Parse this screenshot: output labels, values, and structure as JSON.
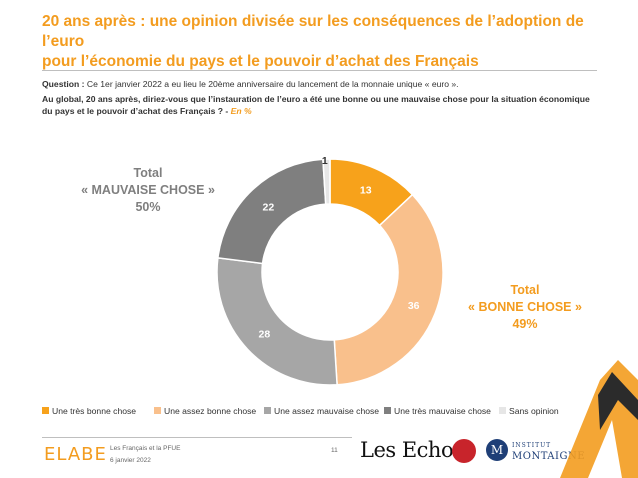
{
  "title": {
    "line1": "20 ans après : une opinion divisée sur les conséquences de l’adoption de l’euro",
    "line2": "pour l’économie du pays et le pouvoir d’achat des Français"
  },
  "question": {
    "label": "Question :",
    "text": " Ce 1er janvier 2022 a eu lieu le 20ème anniversaire du lancement de la monnaie unique « euro ».",
    "text2": "Au global, 20 ans après, diriez-vous que l’instauration de l’euro a été une bonne ou une mauvaise chose pour la situation économique du pays et le pouvoir d’achat des Français ? - ",
    "unit": "En %"
  },
  "totals": {
    "bad_line1": "Total",
    "bad_line2": "« MAUVAISE CHOSE »",
    "bad_value": "50%",
    "good_line1": "Total",
    "good_line2": "« BONNE CHOSE »",
    "good_value": "49%"
  },
  "chart_data": {
    "type": "pie",
    "donut": true,
    "unit": "%",
    "categories": [
      "Une très bonne chose",
      "Une assez bonne chose",
      "Une assez mauvaise chose",
      "Une très mauvaise chose",
      "Sans opinion"
    ],
    "values": [
      13,
      36,
      28,
      22,
      1
    ],
    "colors": [
      "#f7a21b",
      "#f9c08c",
      "#a6a6a6",
      "#7f7f7f",
      "#e6e6e6"
    ],
    "label_colors": [
      "#ffffff",
      "#ffffff",
      "#ffffff",
      "#ffffff",
      "#333333"
    ],
    "legend_position": "bottom"
  },
  "footer": {
    "logo": "ELABE",
    "line1": "Les Français et la PFUE",
    "line2": "6 janvier 2022",
    "page": "11",
    "lesechos": "Les Echos",
    "institut_small": "INSTITUT",
    "institut_big": "MONTAIGNE",
    "institut_letter": "M"
  }
}
